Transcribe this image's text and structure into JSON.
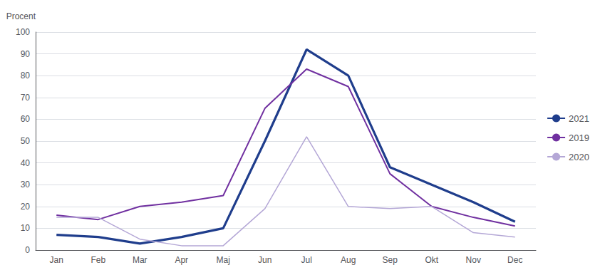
{
  "chart_data": {
    "type": "line",
    "ylabel": "Procent",
    "categories": [
      "Jan",
      "Feb",
      "Mar",
      "Apr",
      "Maj",
      "Jun",
      "Jul",
      "Aug",
      "Sep",
      "Okt",
      "Nov",
      "Dec"
    ],
    "series": [
      {
        "name": "2021",
        "color": "#1f3d8c",
        "values": [
          7,
          6,
          3,
          6,
          10,
          50,
          92,
          80,
          38,
          30,
          22,
          13
        ]
      },
      {
        "name": "2019",
        "color": "#7030a0",
        "values": [
          16,
          14,
          20,
          22,
          25,
          65,
          83,
          75,
          35,
          20,
          15,
          11
        ]
      },
      {
        "name": "2020",
        "color": "#b4a7d6",
        "values": [
          15,
          15,
          5,
          2,
          2,
          19,
          52,
          20,
          19,
          20,
          8,
          6
        ]
      }
    ],
    "ylim": [
      0,
      100
    ],
    "yticks": [
      0,
      10,
      20,
      30,
      40,
      50,
      60,
      70,
      80,
      90,
      100
    ],
    "grid": true,
    "legend": "right"
  }
}
